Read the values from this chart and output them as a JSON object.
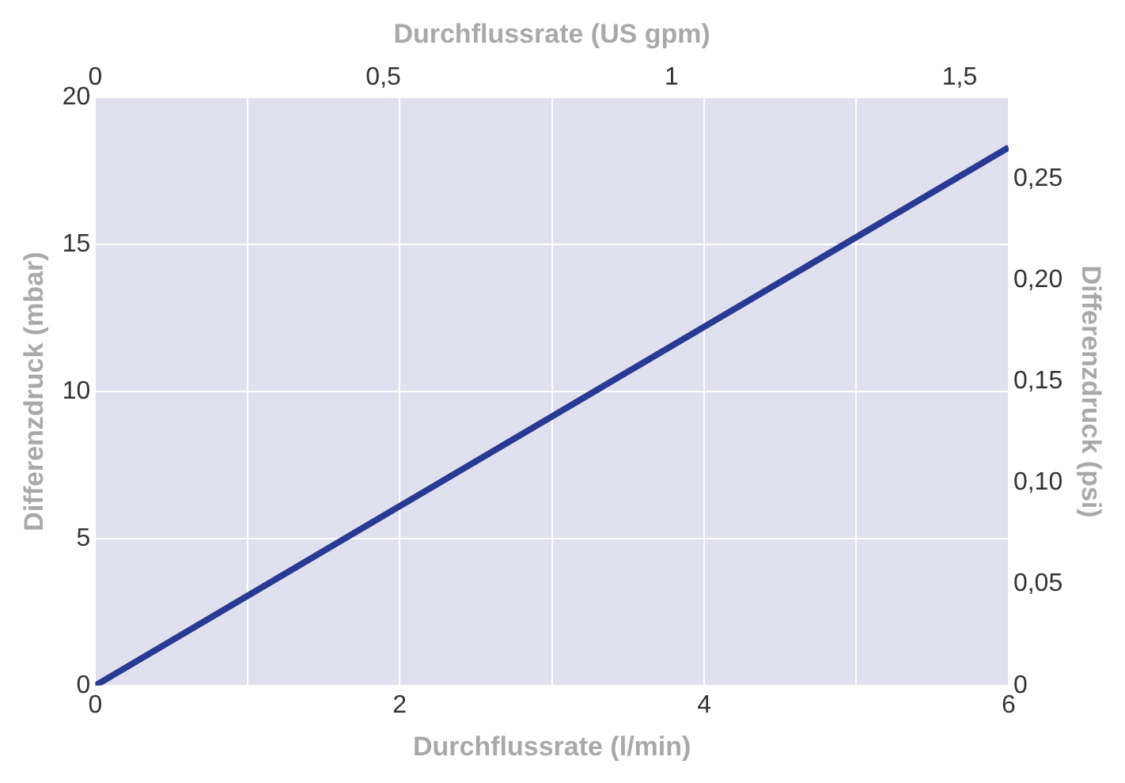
{
  "chart_data": {
    "type": "line",
    "xlabel": "Durchflussrate (l/min)",
    "x2label": "Durchflussrate (US gpm)",
    "ylabel": "Differenzdruck (mbar)",
    "y2label": "Differenzdruck (psi)",
    "x": [
      0,
      6
    ],
    "series": [
      {
        "color": "#283a93",
        "values": [
          0,
          18.3
        ]
      }
    ],
    "xlim": [
      0,
      6
    ],
    "xticks": [
      0,
      {
        "value": 1,
        "label": null
      },
      2,
      {
        "value": 3,
        "label": null
      },
      4,
      {
        "value": 5,
        "label": null
      },
      6
    ],
    "x2lim": [
      0,
      1.585
    ],
    "x2ticks": [
      0,
      {
        "value": 0.5,
        "label": "0,5"
      },
      1,
      {
        "value": 1.5,
        "label": "1,5"
      }
    ],
    "ylim": [
      0,
      20
    ],
    "yticks": [
      0,
      5,
      10,
      15,
      20
    ],
    "y2lim": [
      0,
      0.29
    ],
    "y2ticks": [
      0,
      {
        "value": 0.05,
        "label": "0,05"
      },
      {
        "value": 0.1,
        "label": "0,10"
      },
      {
        "value": 0.15,
        "label": "0,15"
      },
      {
        "value": 0.2,
        "label": "0,20"
      },
      {
        "value": 0.25,
        "label": "0,25"
      }
    ],
    "grid": true,
    "marker": "none",
    "line_style": "solid",
    "legend": false
  }
}
